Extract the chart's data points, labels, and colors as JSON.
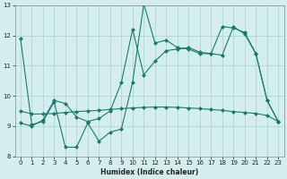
{
  "xlabel": "Humidex (Indice chaleur)",
  "xlim": [
    -0.5,
    23.5
  ],
  "ylim": [
    8,
    13
  ],
  "yticks": [
    8,
    9,
    10,
    11,
    12,
    13
  ],
  "xticks": [
    0,
    1,
    2,
    3,
    4,
    5,
    6,
    7,
    8,
    9,
    10,
    11,
    12,
    13,
    14,
    15,
    16,
    17,
    18,
    19,
    20,
    21,
    22,
    23
  ],
  "background_color": "#d4eeed",
  "grid_color": "#a8d4d0",
  "line_color": "#1a7a6e",
  "series": [
    {
      "x": [
        0,
        1,
        2,
        3,
        4,
        5,
        6,
        7,
        8,
        9,
        10,
        11,
        12,
        13,
        14,
        15,
        16,
        17,
        18,
        19,
        20,
        21,
        22,
        23
      ],
      "y": [
        11.9,
        9.05,
        9.15,
        9.8,
        8.3,
        8.3,
        9.1,
        8.5,
        8.8,
        8.9,
        10.45,
        13.05,
        11.75,
        11.85,
        11.6,
        11.55,
        11.4,
        11.4,
        11.35,
        12.3,
        12.05,
        11.4,
        9.85,
        9.15
      ],
      "marker": "D",
      "markersize": 2.0,
      "linewidth": 0.8,
      "linestyle": "-"
    },
    {
      "x": [
        0,
        1,
        2,
        3,
        4,
        5,
        6,
        7,
        8,
        9,
        10,
        11,
        12,
        13,
        14,
        15,
        16,
        17,
        18,
        19,
        20,
        21,
        22,
        23
      ],
      "y": [
        9.1,
        9.0,
        9.2,
        9.85,
        9.75,
        9.3,
        9.15,
        9.25,
        9.5,
        10.45,
        12.2,
        10.7,
        11.15,
        11.5,
        11.55,
        11.6,
        11.45,
        11.4,
        12.3,
        12.25,
        12.1,
        11.4,
        9.85,
        9.15
      ],
      "marker": "D",
      "markersize": 2.0,
      "linewidth": 0.8,
      "linestyle": "-"
    },
    {
      "x": [
        0,
        1,
        2,
        3,
        4,
        5,
        6,
        7,
        8,
        9,
        10,
        11,
        12,
        13,
        14,
        15,
        16,
        17,
        18,
        19,
        20,
        21,
        22,
        23
      ],
      "y": [
        9.5,
        9.4,
        9.4,
        9.42,
        9.45,
        9.48,
        9.5,
        9.52,
        9.55,
        9.58,
        9.6,
        9.62,
        9.63,
        9.63,
        9.62,
        9.6,
        9.58,
        9.55,
        9.52,
        9.48,
        9.45,
        9.42,
        9.35,
        9.15
      ],
      "marker": "D",
      "markersize": 2.0,
      "linewidth": 0.8,
      "linestyle": "-"
    }
  ]
}
